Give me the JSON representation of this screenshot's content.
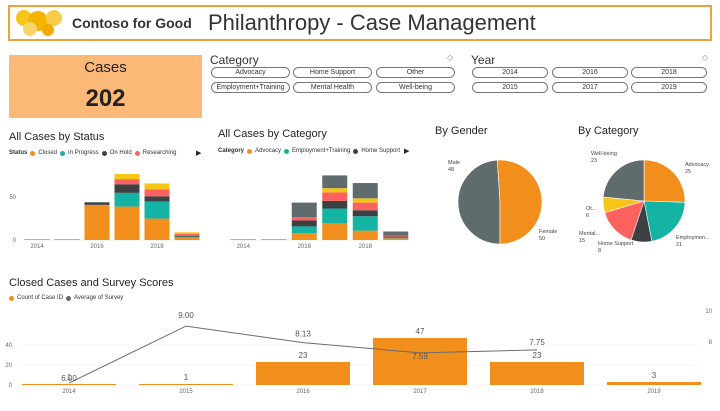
{
  "header": {
    "brand": "Contoso for Good",
    "title": "Philanthropy - Case Management"
  },
  "card": {
    "label": "Cases",
    "value": "202"
  },
  "category_slicer": {
    "title": "Category",
    "options": [
      "Advocacy",
      "Home Support",
      "Other",
      "Employment+Training",
      "Mental Health",
      "Well-being"
    ]
  },
  "year_slicer": {
    "title": "Year",
    "options": [
      "2014",
      "2016",
      "2018",
      "2015",
      "2017",
      "2019"
    ]
  },
  "colors": {
    "orange": "#f28e1c",
    "teal": "#14b3a3",
    "dark": "#3c4043",
    "salmon": "#fd625e",
    "yellow": "#f5c518",
    "gray": "#5f6b6d",
    "accent": "#e8a33d"
  },
  "chart_data": [
    {
      "type": "bar",
      "title": "All Cases by Status",
      "legend_title": "Status",
      "legend_placement": "top-left",
      "categories": [
        "2014",
        "2015",
        "2016",
        "2017",
        "2018",
        "2019"
      ],
      "x_tick_labels": [
        "2014",
        "",
        "2016",
        "",
        "2018",
        ""
      ],
      "ylim": [
        0,
        70
      ],
      "y_ticks": [
        "0",
        "50"
      ],
      "series": [
        {
          "name": "Closed",
          "values": [
            1,
            1,
            41,
            39,
            25,
            3
          ]
        },
        {
          "name": "In Progress",
          "values": [
            0,
            0,
            0,
            16,
            20,
            1
          ]
        },
        {
          "name": "On Hold",
          "values": [
            0,
            0,
            3,
            10,
            6,
            1
          ]
        },
        {
          "name": "Researching",
          "values": [
            0,
            0,
            0,
            6,
            8,
            2
          ]
        },
        {
          "name": "",
          "values": [
            0,
            0,
            0,
            6,
            7,
            2
          ]
        }
      ]
    },
    {
      "type": "bar",
      "title": "All Cases by Category",
      "legend_title": "Category",
      "legend_placement": "top-left",
      "categories": [
        "2014",
        "2015",
        "2016",
        "2017",
        "2018",
        "2019"
      ],
      "x_tick_labels": [
        "2014",
        "",
        "2016",
        "",
        "2018",
        ""
      ],
      "ylim": [
        0,
        80
      ],
      "series": [
        {
          "name": "Advocacy",
          "values": [
            1,
            1,
            8,
            20,
            11,
            2
          ]
        },
        {
          "name": "Employment+Training",
          "values": [
            0,
            0,
            8,
            17,
            17,
            1
          ]
        },
        {
          "name": "Home Support",
          "values": [
            0,
            0,
            7,
            9,
            7,
            1
          ]
        },
        {
          "name": "",
          "values": [
            0,
            0,
            4,
            10,
            9,
            1
          ]
        },
        {
          "name": "",
          "values": [
            0,
            0,
            0,
            5,
            5,
            0
          ]
        },
        {
          "name": "",
          "values": [
            0,
            0,
            17,
            15,
            18,
            5
          ]
        }
      ]
    },
    {
      "type": "pie",
      "title": "By Gender",
      "labels": [
        "Male",
        "Female"
      ],
      "values": [
        48,
        50
      ]
    },
    {
      "type": "pie",
      "title": "By Category",
      "labels": [
        "Advocacy",
        "Employmen...",
        "Home Support",
        "Mental...",
        "Ot...",
        "Well-being"
      ],
      "values": [
        25,
        21,
        8,
        15,
        6,
        23
      ]
    },
    {
      "type": "bar",
      "title": "Closed Cases and Survey Scores",
      "legend_placement": "top-left",
      "categories": [
        "2014",
        "2015",
        "2016",
        "2017",
        "2018",
        "2019"
      ],
      "ylim": [
        0,
        60
      ],
      "y_ticks": [
        "0",
        "20",
        "40"
      ],
      "right_ticks": [
        "8",
        "10"
      ],
      "series": [
        {
          "name": "Count of Case ID",
          "values": [
            1,
            1,
            23,
            47,
            23,
            3
          ]
        },
        {
          "name": "Average of Survey",
          "values": [
            6.0,
            9.0,
            8.13,
            7.59,
            7.75,
            null
          ],
          "value_labels": [
            "6.00",
            "9.00",
            "8.13",
            "7.59",
            "7.75",
            ""
          ]
        }
      ]
    }
  ]
}
